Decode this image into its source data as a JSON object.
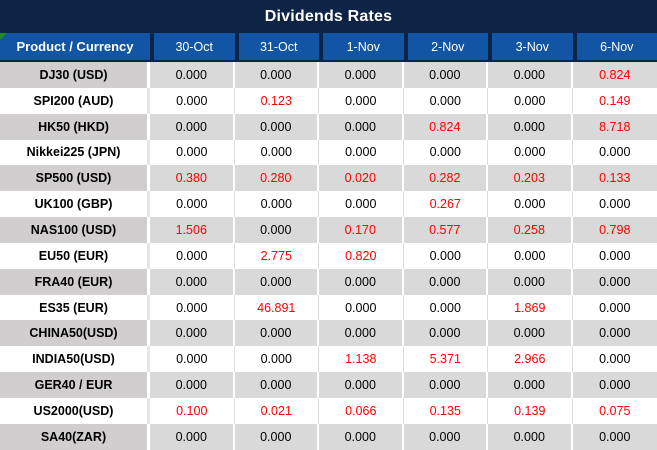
{
  "window": {
    "title": "Dividends Rates"
  },
  "table": {
    "product_header": "Product / Currency",
    "date_headers": [
      "30-Oct",
      "31-Oct",
      "1-Nov",
      "2-Nov",
      "3-Nov",
      "6-Nov"
    ],
    "rows": [
      {
        "product": "DJ30 (USD)",
        "values": [
          "0.000",
          "0.000",
          "0.000",
          "0.000",
          "0.000",
          "0.824"
        ],
        "red": [
          false,
          false,
          false,
          false,
          false,
          true
        ]
      },
      {
        "product": "SPI200 (AUD)",
        "values": [
          "0.000",
          "0.123",
          "0.000",
          "0.000",
          "0.000",
          "0.149"
        ],
        "red": [
          false,
          true,
          false,
          false,
          false,
          true
        ]
      },
      {
        "product": "HK50 (HKD)",
        "values": [
          "0.000",
          "0.000",
          "0.000",
          "0.824",
          "0.000",
          "8.718"
        ],
        "red": [
          false,
          false,
          false,
          true,
          false,
          true
        ]
      },
      {
        "product": "Nikkei225 (JPN)",
        "values": [
          "0.000",
          "0.000",
          "0.000",
          "0.000",
          "0.000",
          "0.000"
        ],
        "red": [
          false,
          false,
          false,
          false,
          false,
          false
        ]
      },
      {
        "product": "SP500 (USD)",
        "values": [
          "0.380",
          "0.280",
          "0.020",
          "0.282",
          "0.203",
          "0.133"
        ],
        "red": [
          true,
          true,
          true,
          true,
          true,
          true
        ]
      },
      {
        "product": "UK100 (GBP)",
        "values": [
          "0.000",
          "0.000",
          "0.000",
          "0.267",
          "0.000",
          "0.000"
        ],
        "red": [
          false,
          false,
          false,
          true,
          false,
          false
        ]
      },
      {
        "product": "NAS100 (USD)",
        "values": [
          "1.506",
          "0.000",
          "0.170",
          "0.577",
          "0.258",
          "0.798"
        ],
        "red": [
          true,
          false,
          true,
          true,
          true,
          true
        ]
      },
      {
        "product": "EU50 (EUR)",
        "values": [
          "0.000",
          "2.775",
          "0.820",
          "0.000",
          "0.000",
          "0.000"
        ],
        "red": [
          false,
          true,
          true,
          false,
          false,
          false
        ]
      },
      {
        "product": "FRA40 (EUR)",
        "values": [
          "0.000",
          "0.000",
          "0.000",
          "0.000",
          "0.000",
          "0.000"
        ],
        "red": [
          false,
          false,
          false,
          false,
          false,
          false
        ]
      },
      {
        "product": "ES35 (EUR)",
        "values": [
          "0.000",
          "46.891",
          "0.000",
          "0.000",
          "1.869",
          "0.000"
        ],
        "red": [
          false,
          true,
          false,
          false,
          true,
          false
        ]
      },
      {
        "product": "CHINA50(USD)",
        "values": [
          "0.000",
          "0.000",
          "0.000",
          "0.000",
          "0.000",
          "0.000"
        ],
        "red": [
          false,
          false,
          false,
          false,
          false,
          false
        ]
      },
      {
        "product": "INDIA50(USD)",
        "values": [
          "0.000",
          "0.000",
          "1.138",
          "5.371",
          "2.966",
          "0.000"
        ],
        "red": [
          false,
          false,
          true,
          true,
          true,
          false
        ]
      },
      {
        "product": "GER40 / EUR",
        "values": [
          "0.000",
          "0.000",
          "0.000",
          "0.000",
          "0.000",
          "0.000"
        ],
        "red": [
          false,
          false,
          false,
          false,
          false,
          false
        ]
      },
      {
        "product": "US2000(USD)",
        "values": [
          "0.100",
          "0.021",
          "0.066",
          "0.135",
          "0.139",
          "0.075"
        ],
        "red": [
          true,
          true,
          true,
          true,
          true,
          true
        ]
      },
      {
        "product": "SA40(ZAR)",
        "values": [
          "0.000",
          "0.000",
          "0.000",
          "0.000",
          "0.000",
          "0.000"
        ],
        "red": [
          false,
          false,
          false,
          false,
          false,
          false
        ]
      }
    ]
  },
  "colors": {
    "title_bg": "#0E2446",
    "header_bg": "#1155A4",
    "divider": "#0E2446",
    "gray_row_bg": "#D9D9D9",
    "gray_row_product_bg": "#D0CECE",
    "negative_value_red": "#FF0000",
    "corner_marker_green": "#1E8C1E"
  }
}
